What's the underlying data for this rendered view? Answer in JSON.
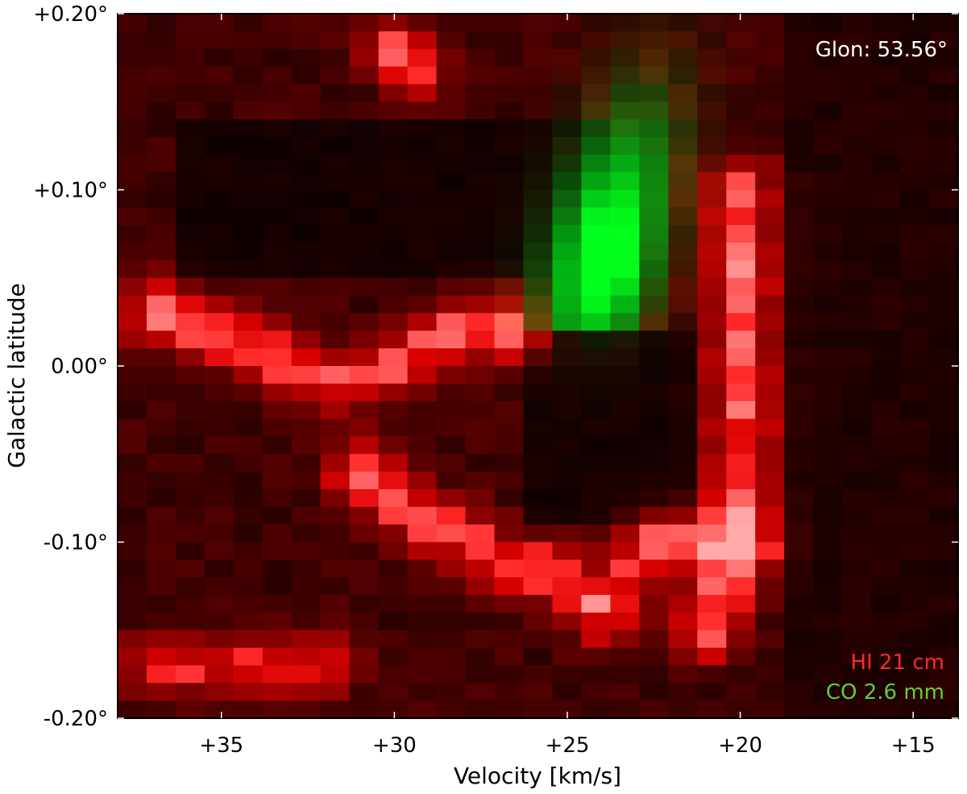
{
  "chart_data": {
    "type": "heatmap",
    "description_kind": "position-velocity diagram (RGB composite)",
    "xlabel": "Velocity [km/s]",
    "ylabel": "Galactic latitude",
    "x_axis": {
      "reversed": true,
      "xlim": [
        38.0,
        13.7
      ],
      "ticks": [
        35,
        30,
        25,
        20,
        15
      ],
      "tick_labels": [
        "+35",
        "+30",
        "+25",
        "+20",
        "+15"
      ]
    },
    "y_axis": {
      "ylim": [
        -0.2,
        0.2
      ],
      "ticks": [
        0.2,
        0.1,
        0.0,
        -0.1,
        -0.2
      ],
      "tick_labels": [
        "+0.20°",
        "+0.10°",
        "0.00°",
        "-0.10°",
        "-0.20°"
      ]
    },
    "annotation": "Glon: 53.56°",
    "series": [
      {
        "name": "HI 21 cm",
        "color": "#ff2a2a",
        "channel": "red",
        "features": [
          {
            "label": "ridge",
            "points": [
              [
                37,
                0.03
              ],
              [
                34,
                0.01
              ],
              [
                32,
                -0.01
              ],
              [
                30,
                0.0
              ],
              [
                28,
                0.02
              ],
              [
                26.5,
                0.02
              ]
            ],
            "peak": "high"
          },
          {
            "label": "arc",
            "points": [
              [
                31,
                -0.06
              ],
              [
                29,
                -0.09
              ],
              [
                27,
                -0.11
              ],
              [
                25,
                -0.12
              ],
              [
                24,
                -0.14
              ],
              [
                22.5,
                -0.1
              ],
              [
                21,
                -0.1
              ],
              [
                20,
                -0.1
              ]
            ],
            "peak": "high"
          },
          {
            "label": "column",
            "points": [
              [
                20,
                0.1
              ],
              [
                20,
                0.0
              ],
              [
                20,
                -0.05
              ],
              [
                20,
                -0.1
              ],
              [
                21,
                -0.15
              ]
            ],
            "peak": "high"
          },
          {
            "label": "base",
            "points": [
              [
                37,
                -0.17
              ],
              [
                34,
                -0.17
              ],
              [
                32,
                -0.17
              ]
            ],
            "peak": "medium"
          },
          {
            "label": "top",
            "points": [
              [
                30,
                0.18
              ],
              [
                29.5,
                0.17
              ]
            ],
            "peak": "high"
          }
        ]
      },
      {
        "name": "CO 2.6 mm",
        "color": "#66cc33",
        "channel": "green",
        "features": [
          {
            "label": "cloud",
            "center": [
              24.0,
              0.06
            ],
            "extent_vel": [
              25.8,
              22.5
            ],
            "extent_lat": [
              0.02,
              0.17
            ],
            "peak_lat": 0.055
          }
        ]
      }
    ],
    "legend": {
      "placement": "bottom-right",
      "entries": [
        "HI 21 cm",
        "CO 2.6 mm"
      ]
    },
    "grid": false
  },
  "legend_colors": {
    "hi": "#ff2a2a",
    "co": "#66cc33"
  }
}
